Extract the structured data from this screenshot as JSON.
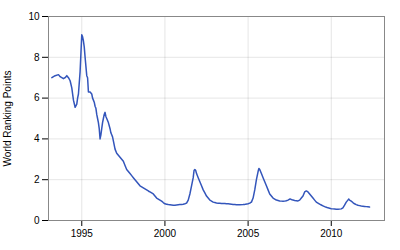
{
  "chart_data": {
    "type": "line",
    "ylabel": "World Ranking Points",
    "color": "#3355bb",
    "x": [
      1993.2,
      1993.4,
      1993.6,
      1993.7,
      1993.8,
      1993.9,
      1994.0,
      1994.1,
      1994.15,
      1994.2,
      1994.3,
      1994.4,
      1994.5,
      1994.6,
      1994.7,
      1994.75,
      1994.8,
      1994.9,
      1995.0,
      1995.05,
      1995.1,
      1995.15,
      1995.2,
      1995.3,
      1995.35,
      1995.4,
      1995.5,
      1995.6,
      1995.65,
      1995.7,
      1995.75,
      1995.8,
      1995.85,
      1995.9,
      1995.95,
      1996.0,
      1996.05,
      1996.1,
      1996.15,
      1996.2,
      1996.25,
      1996.3,
      1996.35,
      1996.4,
      1996.45,
      1996.5,
      1996.6,
      1996.7,
      1996.75,
      1996.8,
      1996.85,
      1996.9,
      1997.0,
      1997.1,
      1997.2,
      1997.3,
      1997.35,
      1997.4,
      1997.5,
      1997.6,
      1997.7,
      1997.8,
      1997.9,
      1998.0,
      1998.1,
      1998.2,
      1998.3,
      1998.4,
      1998.5,
      1998.6,
      1998.7,
      1998.8,
      1998.9,
      1999.0,
      1999.05,
      1999.1,
      1999.2,
      1999.3,
      1999.4,
      1999.5,
      1999.6,
      1999.7,
      1999.8,
      1999.9,
      2000.0,
      2000.1,
      2000.2,
      2000.3,
      2000.4,
      2000.5,
      2000.6,
      2000.7,
      2000.8,
      2000.9,
      2001.0,
      2001.1,
      2001.2,
      2001.3,
      2001.4,
      2001.5,
      2001.6,
      2001.7,
      2001.75,
      2001.8,
      2001.85,
      2001.9,
      2002.0,
      2002.1,
      2002.2,
      2002.3,
      2002.4,
      2002.5,
      2002.6,
      2002.65,
      2002.7,
      2002.75,
      2002.8,
      2002.9,
      2003.0,
      2003.1,
      2003.2,
      2003.3,
      2003.4,
      2003.5,
      2003.6,
      2003.7,
      2003.8,
      2003.9,
      2004.0,
      2004.1,
      2004.2,
      2004.3,
      2004.4,
      2004.5,
      2004.7,
      2004.8,
      2004.85,
      2005.0,
      2005.1,
      2005.15,
      2005.2,
      2005.3,
      2005.4,
      2005.5,
      2005.6,
      2005.65,
      2005.7,
      2005.8,
      2005.9,
      2006.0,
      2006.1,
      2006.2,
      2006.3,
      2006.4,
      2006.5,
      2006.6,
      2006.7,
      2006.8,
      2006.9,
      2007.0,
      2007.1,
      2007.2,
      2007.3,
      2007.4,
      2007.5,
      2007.55,
      2007.6,
      2007.7,
      2007.8,
      2007.9,
      2008.0,
      2008.1,
      2008.2,
      2008.3,
      2008.35,
      2008.4,
      2008.5,
      2008.6,
      2008.7,
      2008.8,
      2008.9,
      2009.0,
      2009.1,
      2009.2,
      2009.3,
      2009.4,
      2009.5,
      2009.6,
      2009.7,
      2009.8,
      2009.9,
      2010.0,
      2010.1,
      2010.2,
      2010.3,
      2010.4,
      2010.6,
      2010.7,
      2010.8,
      2010.9,
      2011.0,
      2011.05,
      2011.1,
      2011.2,
      2011.3,
      2011.4,
      2011.5,
      2011.6,
      2011.7,
      2011.8,
      2011.9,
      2012.0,
      2012.1,
      2012.2,
      2012.3
    ],
    "values": [
      7.0,
      7.1,
      7.15,
      7.05,
      7.0,
      6.95,
      7.0,
      7.1,
      7.05,
      7.0,
      6.85,
      6.5,
      5.9,
      5.55,
      5.7,
      6.0,
      6.2,
      7.3,
      9.1,
      9.0,
      8.8,
      8.5,
      8.0,
      7.1,
      7.0,
      6.3,
      6.3,
      6.2,
      6.0,
      5.9,
      5.8,
      5.6,
      5.5,
      5.2,
      5.0,
      4.8,
      4.5,
      4.0,
      4.2,
      4.5,
      4.8,
      5.0,
      5.2,
      5.3,
      5.1,
      5.0,
      4.8,
      4.5,
      4.3,
      4.2,
      4.1,
      3.9,
      3.5,
      3.3,
      3.2,
      3.1,
      3.05,
      3.0,
      2.9,
      2.7,
      2.5,
      2.4,
      2.3,
      2.2,
      2.1,
      2.0,
      1.9,
      1.8,
      1.7,
      1.65,
      1.6,
      1.55,
      1.5,
      1.45,
      1.42,
      1.4,
      1.35,
      1.3,
      1.2,
      1.1,
      1.05,
      1.0,
      0.95,
      0.88,
      0.82,
      0.8,
      0.78,
      0.77,
      0.76,
      0.75,
      0.75,
      0.76,
      0.77,
      0.78,
      0.79,
      0.8,
      0.82,
      0.85,
      1.0,
      1.3,
      1.7,
      2.1,
      2.45,
      2.5,
      2.45,
      2.3,
      2.1,
      1.9,
      1.7,
      1.5,
      1.35,
      1.2,
      1.1,
      1.05,
      1.0,
      0.98,
      0.95,
      0.9,
      0.88,
      0.86,
      0.85,
      0.84,
      0.83,
      0.83,
      0.83,
      0.82,
      0.82,
      0.81,
      0.8,
      0.79,
      0.78,
      0.77,
      0.77,
      0.77,
      0.78,
      0.79,
      0.8,
      0.82,
      0.85,
      0.88,
      0.9,
      1.1,
      1.5,
      2.0,
      2.4,
      2.55,
      2.5,
      2.3,
      2.1,
      1.9,
      1.7,
      1.5,
      1.3,
      1.2,
      1.1,
      1.05,
      1.0,
      0.98,
      0.96,
      0.95,
      0.94,
      0.95,
      0.97,
      1.0,
      1.05,
      1.05,
      1.03,
      1.0,
      0.98,
      0.97,
      0.96,
      1.0,
      1.1,
      1.2,
      1.3,
      1.4,
      1.45,
      1.4,
      1.3,
      1.2,
      1.1,
      1.0,
      0.9,
      0.85,
      0.8,
      0.76,
      0.72,
      0.68,
      0.65,
      0.62,
      0.6,
      0.58,
      0.57,
      0.56,
      0.55,
      0.55,
      0.57,
      0.62,
      0.75,
      0.9,
      1.0,
      1.05,
      1.0,
      0.95,
      0.88,
      0.82,
      0.78,
      0.75,
      0.73,
      0.71,
      0.7,
      0.69,
      0.68,
      0.67,
      0.66
    ],
    "xlim": [
      1993.0,
      2013.2
    ],
    "xticks": [
      1995,
      2000,
      2005,
      2010
    ],
    "ylim": [
      0,
      10
    ],
    "yticks": [
      0,
      2,
      4,
      6,
      8,
      10
    ],
    "grid": true
  }
}
